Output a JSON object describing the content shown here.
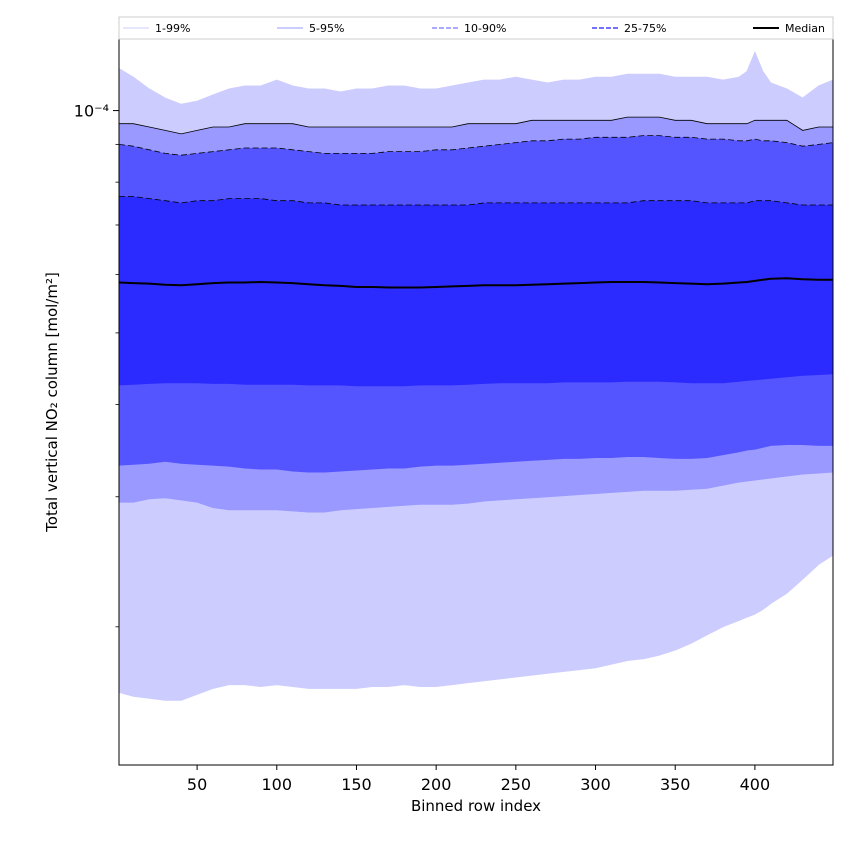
{
  "chart_data": {
    "type": "area",
    "title": "",
    "xlabel": "Binned row index",
    "ylabel": "Total vertical NO₂ column [mol/m²]",
    "xlim": [
      1,
      449
    ],
    "ylim": [
      1.3e-05,
      0.000125
    ],
    "yscale": "log",
    "xticks": [
      50,
      100,
      150,
      200,
      250,
      300,
      350,
      400
    ],
    "yticks": [
      0.0001
    ],
    "ytick_labels": [
      "10⁻⁴"
    ],
    "grid": false,
    "legend_position": "top",
    "x": [
      1,
      10,
      20,
      30,
      40,
      50,
      60,
      70,
      80,
      90,
      100,
      110,
      120,
      130,
      140,
      150,
      160,
      170,
      180,
      190,
      200,
      210,
      220,
      230,
      240,
      250,
      260,
      270,
      280,
      290,
      300,
      310,
      320,
      330,
      340,
      350,
      360,
      370,
      380,
      390,
      395,
      400,
      405,
      410,
      420,
      430,
      440,
      449
    ],
    "bands": [
      {
        "name": "1-99%",
        "fill": "#ccccff",
        "line_color": "#ccccff",
        "line_style": "solid",
        "upper": [
          0.000114,
          0.000111,
          0.000107,
          0.000104,
          0.000102,
          0.000103,
          0.000105,
          0.000107,
          0.000108,
          0.000108,
          0.00011,
          0.000108,
          0.000107,
          0.000107,
          0.000106,
          0.000107,
          0.000107,
          0.000108,
          0.000108,
          0.000107,
          0.000107,
          0.000108,
          0.000109,
          0.00011,
          0.00011,
          0.000111,
          0.00011,
          0.000109,
          0.00011,
          0.00011,
          0.000111,
          0.000111,
          0.000112,
          0.000112,
          0.000112,
          0.000111,
          0.000111,
          0.000111,
          0.00011,
          0.000111,
          0.000113,
          0.00012,
          0.000113,
          0.000109,
          0.000107,
          0.000104,
          0.000108,
          0.00011
        ],
        "lower": [
          1.63e-05,
          1.61e-05,
          1.6e-05,
          1.59e-05,
          1.59e-05,
          1.62e-05,
          1.65e-05,
          1.67e-05,
          1.67e-05,
          1.66e-05,
          1.67e-05,
          1.66e-05,
          1.65e-05,
          1.65e-05,
          1.65e-05,
          1.65e-05,
          1.66e-05,
          1.66e-05,
          1.67e-05,
          1.66e-05,
          1.66e-05,
          1.67e-05,
          1.68e-05,
          1.69e-05,
          1.7e-05,
          1.71e-05,
          1.72e-05,
          1.73e-05,
          1.74e-05,
          1.75e-05,
          1.76e-05,
          1.78e-05,
          1.8e-05,
          1.81e-05,
          1.83e-05,
          1.86e-05,
          1.9e-05,
          1.95e-05,
          2e-05,
          2.04e-05,
          2.06e-05,
          2.08e-05,
          2.11e-05,
          2.15e-05,
          2.22e-05,
          2.32e-05,
          2.43e-05,
          2.5e-05
        ]
      },
      {
        "name": "5-95%",
        "fill": "#9999ff",
        "line_color": "#000000",
        "line_style": "solid",
        "upper": [
          9.6e-05,
          9.6e-05,
          9.5e-05,
          9.4e-05,
          9.3e-05,
          9.4e-05,
          9.5e-05,
          9.5e-05,
          9.6e-05,
          9.6e-05,
          9.6e-05,
          9.6e-05,
          9.5e-05,
          9.5e-05,
          9.5e-05,
          9.5e-05,
          9.5e-05,
          9.5e-05,
          9.5e-05,
          9.5e-05,
          9.5e-05,
          9.5e-05,
          9.6e-05,
          9.6e-05,
          9.6e-05,
          9.6e-05,
          9.7e-05,
          9.7e-05,
          9.7e-05,
          9.7e-05,
          9.7e-05,
          9.7e-05,
          9.8e-05,
          9.8e-05,
          9.8e-05,
          9.7e-05,
          9.7e-05,
          9.6e-05,
          9.6e-05,
          9.6e-05,
          9.6e-05,
          9.7e-05,
          9.7e-05,
          9.7e-05,
          9.7e-05,
          9.4e-05,
          9.5e-05,
          9.5e-05
        ],
        "lower": [
          2.95e-05,
          2.95e-05,
          2.98e-05,
          2.99e-05,
          2.97e-05,
          2.95e-05,
          2.9e-05,
          2.88e-05,
          2.88e-05,
          2.88e-05,
          2.88e-05,
          2.87e-05,
          2.86e-05,
          2.86e-05,
          2.88e-05,
          2.89e-05,
          2.9e-05,
          2.91e-05,
          2.92e-05,
          2.93e-05,
          2.93e-05,
          2.93e-05,
          2.94e-05,
          2.96e-05,
          2.97e-05,
          2.98e-05,
          2.99e-05,
          3e-05,
          3.01e-05,
          3.02e-05,
          3.03e-05,
          3.04e-05,
          3.05e-05,
          3.06e-05,
          3.06e-05,
          3.06e-05,
          3.07e-05,
          3.08e-05,
          3.11e-05,
          3.14e-05,
          3.15e-05,
          3.16e-05,
          3.17e-05,
          3.18e-05,
          3.2e-05,
          3.22e-05,
          3.23e-05,
          3.24e-05
        ]
      },
      {
        "name": "10-90%",
        "fill": "#5555ff",
        "line_color": "#000000",
        "line_style": "dashed",
        "upper": [
          9e-05,
          8.95e-05,
          8.85e-05,
          8.75e-05,
          8.7e-05,
          8.75e-05,
          8.8e-05,
          8.85e-05,
          8.9e-05,
          8.9e-05,
          8.9e-05,
          8.85e-05,
          8.8e-05,
          8.75e-05,
          8.75e-05,
          8.75e-05,
          8.75e-05,
          8.8e-05,
          8.8e-05,
          8.8e-05,
          8.85e-05,
          8.85e-05,
          8.9e-05,
          8.95e-05,
          9e-05,
          9.05e-05,
          9.1e-05,
          9.1e-05,
          9.15e-05,
          9.15e-05,
          9.2e-05,
          9.2e-05,
          9.2e-05,
          9.25e-05,
          9.25e-05,
          9.2e-05,
          9.2e-05,
          9.15e-05,
          9.15e-05,
          9.1e-05,
          9.1e-05,
          9.15e-05,
          9.1e-05,
          9.1e-05,
          9.05e-05,
          8.95e-05,
          9e-05,
          9.05e-05
        ],
        "lower": [
          3.31e-05,
          3.32e-05,
          3.33e-05,
          3.35e-05,
          3.33e-05,
          3.32e-05,
          3.31e-05,
          3.3e-05,
          3.28e-05,
          3.27e-05,
          3.27e-05,
          3.25e-05,
          3.24e-05,
          3.24e-05,
          3.25e-05,
          3.26e-05,
          3.27e-05,
          3.28e-05,
          3.28e-05,
          3.3e-05,
          3.31e-05,
          3.31e-05,
          3.32e-05,
          3.33e-05,
          3.34e-05,
          3.35e-05,
          3.36e-05,
          3.37e-05,
          3.38e-05,
          3.38e-05,
          3.39e-05,
          3.39e-05,
          3.4e-05,
          3.4e-05,
          3.39e-05,
          3.38e-05,
          3.38e-05,
          3.39e-05,
          3.42e-05,
          3.45e-05,
          3.47e-05,
          3.48e-05,
          3.5e-05,
          3.52e-05,
          3.53e-05,
          3.53e-05,
          3.52e-05,
          3.52e-05
        ]
      },
      {
        "name": "25-75%",
        "fill": "#2b2bff",
        "line_color": "#000000",
        "line_style": "dashed",
        "upper": [
          7.65e-05,
          7.65e-05,
          7.6e-05,
          7.55e-05,
          7.5e-05,
          7.55e-05,
          7.55e-05,
          7.6e-05,
          7.6e-05,
          7.6e-05,
          7.55e-05,
          7.55e-05,
          7.5e-05,
          7.5e-05,
          7.45e-05,
          7.45e-05,
          7.45e-05,
          7.45e-05,
          7.45e-05,
          7.45e-05,
          7.45e-05,
          7.45e-05,
          7.45e-05,
          7.5e-05,
          7.5e-05,
          7.5e-05,
          7.5e-05,
          7.5e-05,
          7.5e-05,
          7.5e-05,
          7.5e-05,
          7.5e-05,
          7.5e-05,
          7.55e-05,
          7.55e-05,
          7.55e-05,
          7.55e-05,
          7.5e-05,
          7.5e-05,
          7.5e-05,
          7.5e-05,
          7.55e-05,
          7.55e-05,
          7.55e-05,
          7.5e-05,
          7.45e-05,
          7.45e-05,
          7.45e-05
        ],
        "lower": [
          4.25e-05,
          4.26e-05,
          4.27e-05,
          4.28e-05,
          4.28e-05,
          4.28e-05,
          4.27e-05,
          4.27e-05,
          4.26e-05,
          4.26e-05,
          4.26e-05,
          4.26e-05,
          4.25e-05,
          4.25e-05,
          4.25e-05,
          4.24e-05,
          4.24e-05,
          4.24e-05,
          4.24e-05,
          4.25e-05,
          4.25e-05,
          4.25e-05,
          4.26e-05,
          4.27e-05,
          4.28e-05,
          4.28e-05,
          4.28e-05,
          4.28e-05,
          4.29e-05,
          4.29e-05,
          4.29e-05,
          4.29e-05,
          4.3e-05,
          4.3e-05,
          4.3e-05,
          4.29e-05,
          4.28e-05,
          4.28e-05,
          4.28e-05,
          4.3e-05,
          4.31e-05,
          4.32e-05,
          4.33e-05,
          4.34e-05,
          4.36e-05,
          4.38e-05,
          4.39e-05,
          4.4e-05
        ]
      }
    ],
    "series": [
      {
        "name": "Median",
        "color": "#000000",
        "values": [
          5.85e-05,
          5.84e-05,
          5.83e-05,
          5.81e-05,
          5.8e-05,
          5.82e-05,
          5.84e-05,
          5.85e-05,
          5.85e-05,
          5.86e-05,
          5.85e-05,
          5.84e-05,
          5.82e-05,
          5.8e-05,
          5.79e-05,
          5.77e-05,
          5.77e-05,
          5.76e-05,
          5.76e-05,
          5.76e-05,
          5.77e-05,
          5.78e-05,
          5.79e-05,
          5.8e-05,
          5.8e-05,
          5.8e-05,
          5.81e-05,
          5.82e-05,
          5.83e-05,
          5.84e-05,
          5.85e-05,
          5.86e-05,
          5.86e-05,
          5.86e-05,
          5.85e-05,
          5.84e-05,
          5.83e-05,
          5.82e-05,
          5.83e-05,
          5.85e-05,
          5.86e-05,
          5.88e-05,
          5.9e-05,
          5.92e-05,
          5.93e-05,
          5.91e-05,
          5.9e-05,
          5.9e-05
        ]
      }
    ],
    "legend": [
      {
        "label": "1-99%",
        "color": "#ccccff",
        "style": "solid",
        "width": 1
      },
      {
        "label": "5-95%",
        "color": "#9999ff",
        "style": "solid",
        "width": 1
      },
      {
        "label": "10-90%",
        "color": "#7777ff",
        "style": "dashed",
        "width": 1.2
      },
      {
        "label": "25-75%",
        "color": "#4444ff",
        "style": "dashed",
        "width": 1.5
      },
      {
        "label": "Median",
        "color": "#000000",
        "style": "solid",
        "width": 2
      }
    ]
  }
}
